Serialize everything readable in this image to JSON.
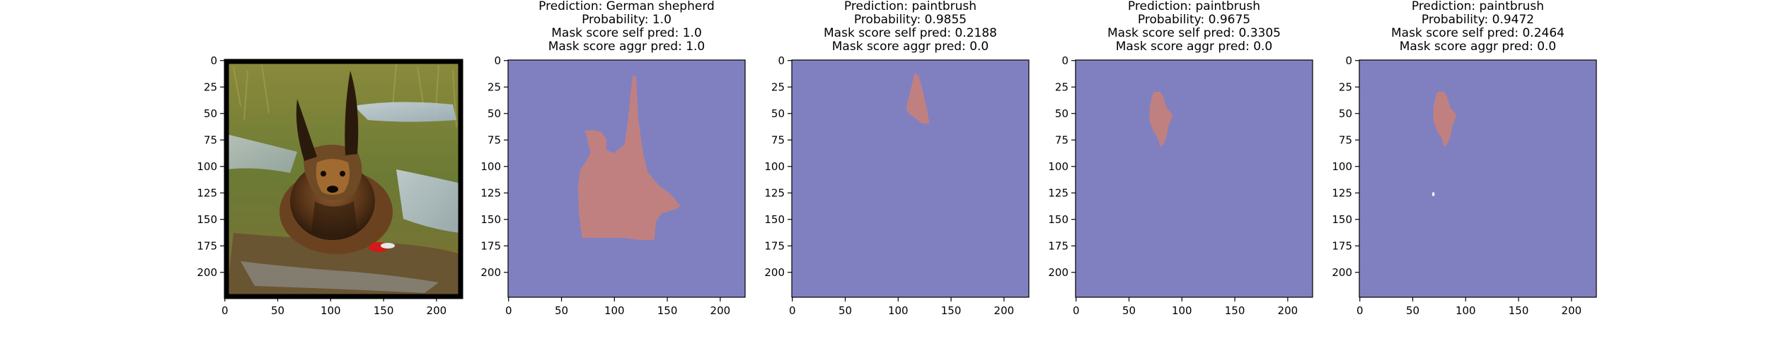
{
  "figure": {
    "panels": [
      {
        "id": "input",
        "title_lines": [],
        "kind": "photo",
        "description_name": "german-shepherd-in-puddle-photo"
      },
      {
        "id": "p1",
        "title_lines": [
          "Prediction: German shepherd",
          "Probability: 1.0",
          "Mask score self pred: 1.0",
          "Mask score aggr pred: 1.0"
        ],
        "kind": "mask",
        "mask_name": "dog-head-mask"
      },
      {
        "id": "p2",
        "title_lines": [
          "Prediction: paintbrush",
          "Probability: 0.9855",
          "Mask score self pred: 0.2188",
          "Mask score aggr pred: 0.0"
        ],
        "kind": "mask",
        "mask_name": "right-ear-mask"
      },
      {
        "id": "p3",
        "title_lines": [
          "Prediction: paintbrush",
          "Probability: 0.9675",
          "Mask score self pred: 0.3305",
          "Mask score aggr pred: 0.0"
        ],
        "kind": "mask",
        "mask_name": "left-ear-mask"
      },
      {
        "id": "p4",
        "title_lines": [
          "Prediction: paintbrush",
          "Probability: 0.9472",
          "Mask score self pred: 0.2464",
          "Mask score aggr pred: 0.0"
        ],
        "kind": "mask",
        "mask_name": "left-ear-mask-with-speck"
      }
    ],
    "x_ticks": [
      "0",
      "50",
      "100",
      "150",
      "200"
    ],
    "y_ticks": [
      "0",
      "25",
      "50",
      "75",
      "100",
      "125",
      "150",
      "175",
      "200"
    ],
    "colors": {
      "mask_background": "#8080c0",
      "mask_foreground": "#c08080",
      "axis": "#000000"
    }
  }
}
